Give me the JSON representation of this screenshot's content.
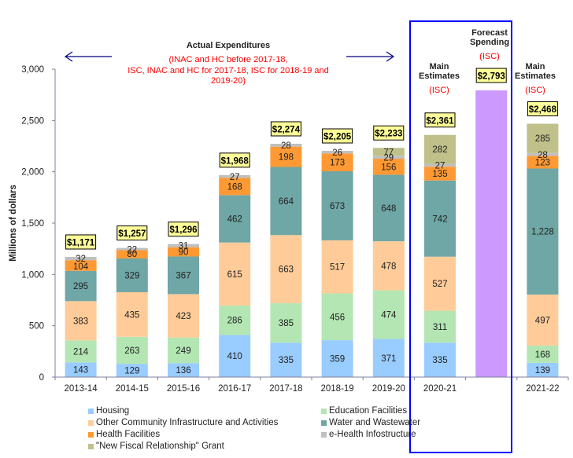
{
  "chart_data": {
    "type": "bar",
    "stacked": true,
    "title": "",
    "xlabel": "",
    "ylabel": "Millions of dollars",
    "ylim": [
      0,
      3000
    ],
    "yticks": [
      0,
      500,
      1000,
      1500,
      2000,
      2500,
      3000
    ],
    "ytick_labels": [
      "0",
      "500",
      "1,000",
      "1,500",
      "2,000",
      "2,500",
      "3,000"
    ],
    "grid": false,
    "legend_position": "bottom",
    "categories": [
      "2013-14",
      "2014-15",
      "2015-16",
      "2016-17",
      "2017-18",
      "2018-19",
      "2019-20",
      "2020-21",
      "",
      "2021-22"
    ],
    "series": [
      {
        "name": "Housing",
        "color": "#99CCFF",
        "values": [
          143,
          129,
          136,
          410,
          335,
          359,
          371,
          335,
          null,
          139
        ]
      },
      {
        "name": "Education Facilities",
        "color": "#B3E6B3",
        "values": [
          214,
          263,
          249,
          286,
          385,
          456,
          474,
          311,
          null,
          168
        ]
      },
      {
        "name": "Other Community Infrastructure and Activities",
        "color": "#FFCC99",
        "values": [
          383,
          435,
          423,
          615,
          663,
          517,
          478,
          527,
          null,
          497
        ]
      },
      {
        "name": "Water and Wastewater",
        "color": "#6FA6A6",
        "values": [
          295,
          329,
          367,
          462,
          664,
          673,
          648,
          742,
          null,
          1228
        ]
      },
      {
        "name": "Health Facilities",
        "color": "#FF9933",
        "values": [
          104,
          80,
          90,
          168,
          198,
          173,
          156,
          135,
          null,
          123
        ]
      },
      {
        "name": "e-Health Infostructure",
        "color": "#C0C0C0",
        "values": [
          32,
          22,
          31,
          27,
          28,
          26,
          29,
          27,
          null,
          28
        ]
      },
      {
        "name": "\"New Fiscal Relationship\" Grant",
        "color": "#C0C08A",
        "values": [
          null,
          null,
          null,
          null,
          null,
          null,
          77,
          282,
          null,
          285
        ]
      },
      {
        "name": "Forecast Spending",
        "color": "#CC99FF",
        "values": [
          null,
          null,
          null,
          null,
          null,
          null,
          null,
          null,
          2793,
          null
        ],
        "in_legend": false
      }
    ],
    "totals": [
      "$1,171",
      "$1,257",
      "$1,296",
      "$1,968",
      "$2,274",
      "$2,205",
      "$2,233",
      "$2,361",
      "$2,793",
      "$2,468"
    ],
    "annotations": {
      "actual_title": "Actual Expenditures",
      "actual_note_lines": [
        "(INAC and HC before 2017-18,",
        "ISC, INAC and HC for 2017-18, ISC for 2018-19 and",
        "2019-20)"
      ],
      "main_estimates_2020": [
        "Main",
        "Estimates"
      ],
      "main_estimates_2020_org": "(ISC)",
      "forecast_title": [
        "Forecast",
        "Spending"
      ],
      "forecast_org": "(ISC)",
      "main_estimates_2021": [
        "Main",
        "Estimates"
      ],
      "main_estimates_2021_org": "(ISC)"
    },
    "colors": {
      "axis": "#7F7F9F",
      "highlight_box": "#0000FF",
      "arrow": "#000080",
      "note_red": "#FF0000",
      "total_box_fill": "#FFFF99"
    }
  }
}
